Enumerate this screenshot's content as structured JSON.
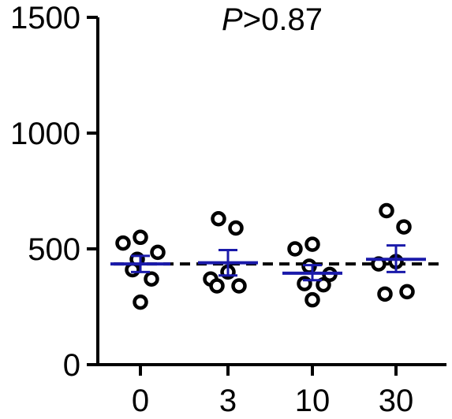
{
  "chart_data": {
    "type": "scatter",
    "title": "",
    "xlabel": "",
    "ylabel": "",
    "annotation": {
      "italic": "P",
      "rest": ">0.87"
    },
    "categories": [
      "0",
      "3",
      "10",
      "30"
    ],
    "ylim": [
      0,
      1500
    ],
    "yticks": [
      0,
      500,
      1000,
      1500
    ],
    "grid": false,
    "reference_line": 435,
    "groups": [
      {
        "category": "0",
        "points": [
          525,
          550,
          455,
          485,
          410,
          370,
          270
        ],
        "mean": 435,
        "sem_low": 400,
        "sem_high": 470
      },
      {
        "category": "3",
        "points": [
          630,
          590,
          400,
          370,
          340,
          340
        ],
        "mean": 440,
        "sem_low": 385,
        "sem_high": 495
      },
      {
        "category": "10",
        "points": [
          500,
          520,
          425,
          390,
          350,
          345,
          280
        ],
        "mean": 395,
        "sem_low": 365,
        "sem_high": 430
      },
      {
        "category": "30",
        "points": [
          665,
          595,
          445,
          435,
          305,
          315
        ],
        "mean": 455,
        "sem_low": 400,
        "sem_high": 515
      }
    ],
    "colors": {
      "points": "#000000",
      "mean": "#1a1aaa",
      "axis": "#000000",
      "reference_line": "#000000"
    }
  }
}
